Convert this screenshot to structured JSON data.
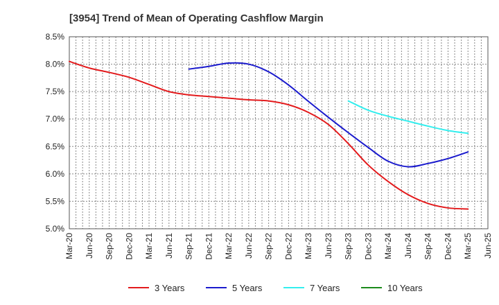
{
  "chart_data": {
    "type": "line",
    "title": "[3954]  Trend of Mean of Operating Cashflow Margin",
    "xlabel": "",
    "ylabel": "",
    "ylim": [
      5.0,
      8.5
    ],
    "yticks": [
      "8.5%",
      "8.0%",
      "7.5%",
      "7.0%",
      "6.5%",
      "6.0%",
      "5.5%",
      "5.0%"
    ],
    "ytick_values": [
      8.5,
      8.0,
      7.5,
      7.0,
      6.5,
      6.0,
      5.5,
      5.0
    ],
    "grid": true,
    "legend_position": "bottom",
    "categories": [
      "Mar-20",
      "Jun-20",
      "Sep-20",
      "Dec-20",
      "Mar-21",
      "Jun-21",
      "Sep-21",
      "Dec-21",
      "Mar-22",
      "Jun-22",
      "Sep-22",
      "Dec-22",
      "Mar-23",
      "Jun-23",
      "Sep-23",
      "Dec-23",
      "Mar-24",
      "Jun-24",
      "Sep-24",
      "Dec-24",
      "Mar-25",
      "Jun-25"
    ],
    "series": [
      {
        "name": "3 Years",
        "color": "#e31a1c",
        "values": [
          8.05,
          7.93,
          7.85,
          7.76,
          7.63,
          7.5,
          7.44,
          7.41,
          7.38,
          7.35,
          7.33,
          7.26,
          7.12,
          6.9,
          6.55,
          6.16,
          5.86,
          5.62,
          5.46,
          5.38,
          5.36,
          null
        ]
      },
      {
        "name": "5 Years",
        "color": "#1a1acd",
        "values": [
          null,
          null,
          null,
          null,
          null,
          null,
          7.91,
          7.96,
          8.02,
          8.0,
          7.86,
          7.62,
          7.32,
          7.03,
          6.75,
          6.48,
          6.23,
          6.13,
          6.19,
          6.28,
          6.4,
          null
        ]
      },
      {
        "name": "7 Years",
        "color": "#33eeee",
        "values": [
          null,
          null,
          null,
          null,
          null,
          null,
          null,
          null,
          null,
          null,
          null,
          null,
          null,
          null,
          7.33,
          7.16,
          7.05,
          6.96,
          6.87,
          6.79,
          6.74,
          null
        ]
      },
      {
        "name": "10 Years",
        "color": "#1a8a1a",
        "values": [
          null,
          null,
          null,
          null,
          null,
          null,
          null,
          null,
          null,
          null,
          null,
          null,
          null,
          null,
          null,
          null,
          null,
          null,
          null,
          null,
          null,
          null
        ]
      }
    ]
  }
}
